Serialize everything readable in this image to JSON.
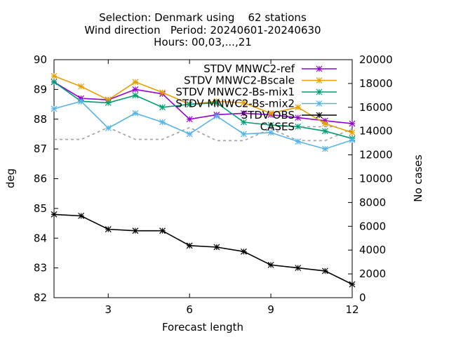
{
  "chart_data": {
    "type": "line",
    "title_lines": [
      "Selection: Denmark using    62 stations",
      "Wind direction   Period: 20240601-20240630",
      "Hours: 00,03,...,21"
    ],
    "xlabel": "Forecast length",
    "ylabel": "deg",
    "y2label": "No cases",
    "xlim": [
      1,
      12
    ],
    "ylim": [
      82,
      90
    ],
    "y2lim": [
      0,
      20000
    ],
    "x_ticks": [
      3,
      6,
      9,
      12
    ],
    "y_ticks": [
      82,
      83,
      84,
      85,
      86,
      87,
      88,
      89,
      90
    ],
    "y2_ticks": [
      0,
      2000,
      4000,
      6000,
      8000,
      10000,
      12000,
      14000,
      16000,
      18000,
      20000
    ],
    "grid": false,
    "legend_position": "top-right",
    "x": [
      1,
      2,
      3,
      4,
      5,
      6,
      7,
      8,
      9,
      10,
      11,
      12
    ],
    "series": [
      {
        "name": "STDV MNWC2-ref",
        "color": "#9400d3",
        "axis": "y1",
        "style": "line-star",
        "values": [
          89.25,
          88.7,
          88.65,
          89.0,
          88.85,
          88.0,
          88.15,
          88.2,
          88.15,
          88.05,
          87.95,
          87.85
        ]
      },
      {
        "name": "STDV MNWC2-Bscale",
        "color": "#e69f00",
        "axis": "y1",
        "style": "line-star",
        "values": [
          89.45,
          89.1,
          88.65,
          89.25,
          88.9,
          88.5,
          88.6,
          88.55,
          88.2,
          88.4,
          87.85,
          87.55
        ]
      },
      {
        "name": "STDV MNWC2-Bs-mix1",
        "color": "#009e73",
        "axis": "y1",
        "style": "line-star",
        "values": [
          89.25,
          88.6,
          88.55,
          88.8,
          88.4,
          88.5,
          88.55,
          87.9,
          87.8,
          87.75,
          87.6,
          87.35
        ]
      },
      {
        "name": "STDV MNWC2-Bs-mix2",
        "color": "#56b4e9",
        "axis": "y1",
        "style": "line-star",
        "values": [
          88.35,
          88.6,
          87.7,
          88.2,
          87.9,
          87.5,
          88.1,
          87.5,
          87.55,
          87.25,
          87.0,
          87.3
        ]
      },
      {
        "name": "STDV OBS",
        "color": "#000000",
        "axis": "y1",
        "style": "line-star",
        "values": [
          84.8,
          84.75,
          84.3,
          84.25,
          84.25,
          83.75,
          83.7,
          83.55,
          83.1,
          83.0,
          82.9,
          82.45
        ]
      },
      {
        "name": "CASES",
        "color": "#a0a0a0",
        "axis": "y2",
        "style": "dashed",
        "values": [
          13300,
          13300,
          14300,
          13300,
          13300,
          14300,
          13200,
          13200,
          14200,
          13200,
          13200,
          14200
        ]
      }
    ]
  }
}
